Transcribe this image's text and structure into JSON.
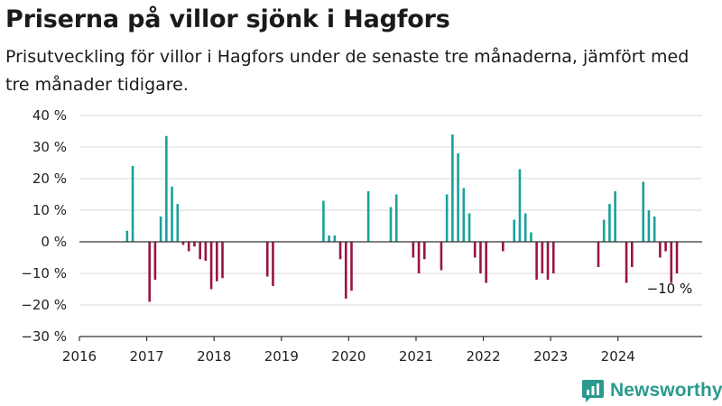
{
  "header": {
    "title": "Priserna på villor sjönk i Hagfors",
    "subtitle": "Prisutveckling för villor i Hagfors under de senaste tre månaderna, jämfört med tre månader tidigare."
  },
  "brand": {
    "name": "Newsworthy"
  },
  "chart_data": {
    "type": "bar",
    "title": "",
    "xlabel": "",
    "ylabel": "",
    "ylim": [
      -30,
      40
    ],
    "xlim": [
      "2016-01-01",
      "2025-04-01"
    ],
    "y_ticks": [
      -30,
      -20,
      -10,
      0,
      10,
      20,
      30,
      40
    ],
    "y_tick_labels": [
      "−30 %",
      "−20 %",
      "−10 %",
      "0 %",
      "10 %",
      "20 %",
      "30 %",
      "40 %"
    ],
    "x_tick_labels": [
      "2016",
      "2017",
      "2018",
      "2019",
      "2020",
      "2021",
      "2022",
      "2023",
      "2024"
    ],
    "grid": true,
    "colors": {
      "positive": "#1aa19a",
      "negative": "#9a1346",
      "grid": "#d9d9d9",
      "axis": "#333333"
    },
    "annotation": {
      "label": "−10 %",
      "x": "2024-11",
      "y": -10
    },
    "x": [
      "2016-09",
      "2016-10",
      "2017-01",
      "2017-02",
      "2017-03",
      "2017-04",
      "2017-05",
      "2017-06",
      "2017-07",
      "2017-08",
      "2017-09",
      "2017-10",
      "2017-11",
      "2017-12",
      "2018-01",
      "2018-02",
      "2018-10",
      "2018-11",
      "2019-08",
      "2019-09",
      "2019-10",
      "2019-11",
      "2019-12",
      "2020-01",
      "2020-04",
      "2020-08",
      "2020-09",
      "2020-12",
      "2021-01",
      "2021-02",
      "2021-05",
      "2021-06",
      "2021-07",
      "2021-08",
      "2021-09",
      "2021-10",
      "2021-11",
      "2021-12",
      "2022-01",
      "2022-04",
      "2022-06",
      "2022-07",
      "2022-08",
      "2022-09",
      "2022-10",
      "2022-11",
      "2022-12",
      "2023-01",
      "2023-09",
      "2023-10",
      "2023-11",
      "2023-12",
      "2024-02",
      "2024-03",
      "2024-05",
      "2024-06",
      "2024-07",
      "2024-08",
      "2024-09",
      "2024-10",
      "2024-11"
    ],
    "values": [
      3.5,
      24,
      -19,
      -12,
      8,
      33.5,
      17.5,
      12,
      -1,
      -3,
      -1.5,
      -5.5,
      -6,
      -15,
      -12.5,
      -11.5,
      -11,
      -14,
      13,
      2,
      2,
      -5.5,
      -18,
      -15.5,
      16,
      11,
      15,
      -5,
      -10,
      -5.5,
      -9,
      15,
      34,
      28,
      17,
      9,
      -5,
      -10,
      -13,
      -3,
      7,
      23,
      9,
      3,
      -12,
      -10,
      -12,
      -10,
      -8,
      7,
      12,
      16,
      -13,
      -8,
      19,
      10,
      8,
      -5,
      -3,
      -13,
      -10
    ]
  }
}
